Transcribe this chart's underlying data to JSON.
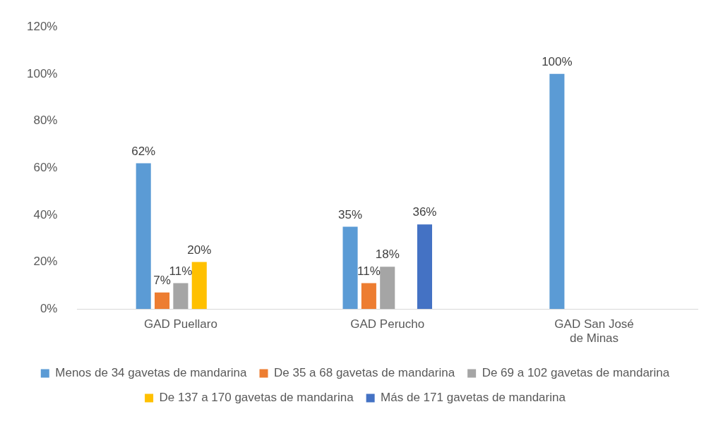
{
  "chart_data": {
    "type": "bar",
    "categories": [
      "GAD Puellaro",
      "GAD Perucho",
      "GAD San José de Minas"
    ],
    "series": [
      {
        "name": "Menos de 34 gavetas de mandarina",
        "color": "#5b9bd5",
        "values": [
          62,
          35,
          100
        ],
        "value_labels": [
          "62%",
          "35%",
          "100%"
        ]
      },
      {
        "name": "De 35 a 68 gavetas de mandarina",
        "color": "#ed7d31",
        "values": [
          7,
          11,
          null
        ],
        "value_labels": [
          "7%",
          "11%",
          null
        ]
      },
      {
        "name": "De 69 a 102 gavetas de mandarina",
        "color": "#a5a5a5",
        "values": [
          11,
          18,
          null
        ],
        "value_labels": [
          "11%",
          "18%",
          null
        ]
      },
      {
        "name": "De 137 a 170 gavetas de mandarina",
        "color": "#ffc000",
        "values": [
          20,
          null,
          null
        ],
        "value_labels": [
          "20%",
          null,
          null
        ]
      },
      {
        "name": "Más de 171 gavetas de mandarina",
        "color": "#4472c4",
        "values": [
          null,
          36,
          null
        ],
        "value_labels": [
          null,
          "36%",
          null
        ]
      }
    ],
    "ylim": [
      0,
      120
    ],
    "yticks": [
      {
        "value": 0,
        "label": "0%"
      },
      {
        "value": 20,
        "label": "20%"
      },
      {
        "value": 40,
        "label": "40%"
      },
      {
        "value": 60,
        "label": "60%"
      },
      {
        "value": 80,
        "label": "80%"
      },
      {
        "value": 100,
        "label": "100%"
      },
      {
        "value": 120,
        "label": "120%"
      }
    ],
    "grid": false,
    "legend": "bottom"
  }
}
